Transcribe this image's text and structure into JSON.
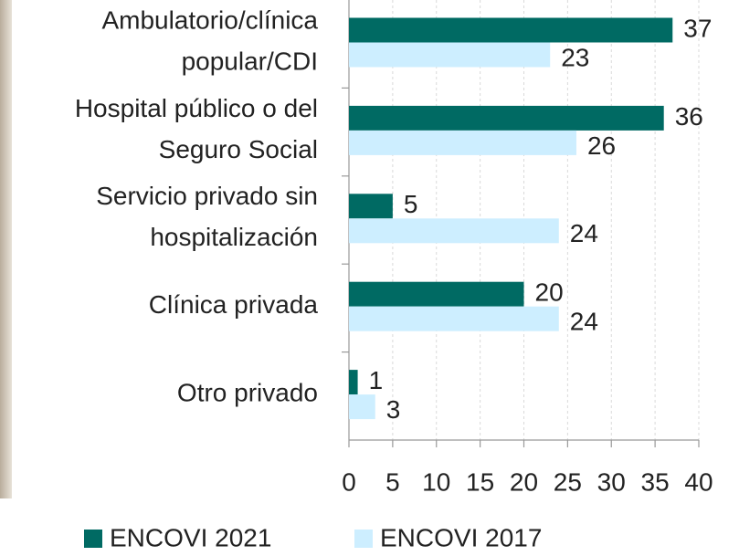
{
  "chart_data": {
    "type": "barh",
    "categories": [
      [
        "Ambulatorio/clínica",
        "popular/CDI"
      ],
      [
        "Hospital público o del",
        "Seguro Social"
      ],
      [
        "Servicio privado sin",
        "hospitalización"
      ],
      [
        "Clínica privada"
      ],
      [
        "Otro privado"
      ]
    ],
    "series": [
      {
        "name": "ENCOVI 2021",
        "color": "#006a63",
        "values": [
          37,
          36,
          5,
          20,
          1
        ]
      },
      {
        "name": "ENCOVI 2017",
        "color": "#cdeeff",
        "values": [
          23,
          26,
          24,
          24,
          3
        ]
      }
    ],
    "xlim": [
      0,
      40
    ],
    "xticks": [
      0,
      5,
      10,
      15,
      20,
      25,
      30,
      35,
      40
    ],
    "grid": true,
    "legend": "bottom"
  }
}
